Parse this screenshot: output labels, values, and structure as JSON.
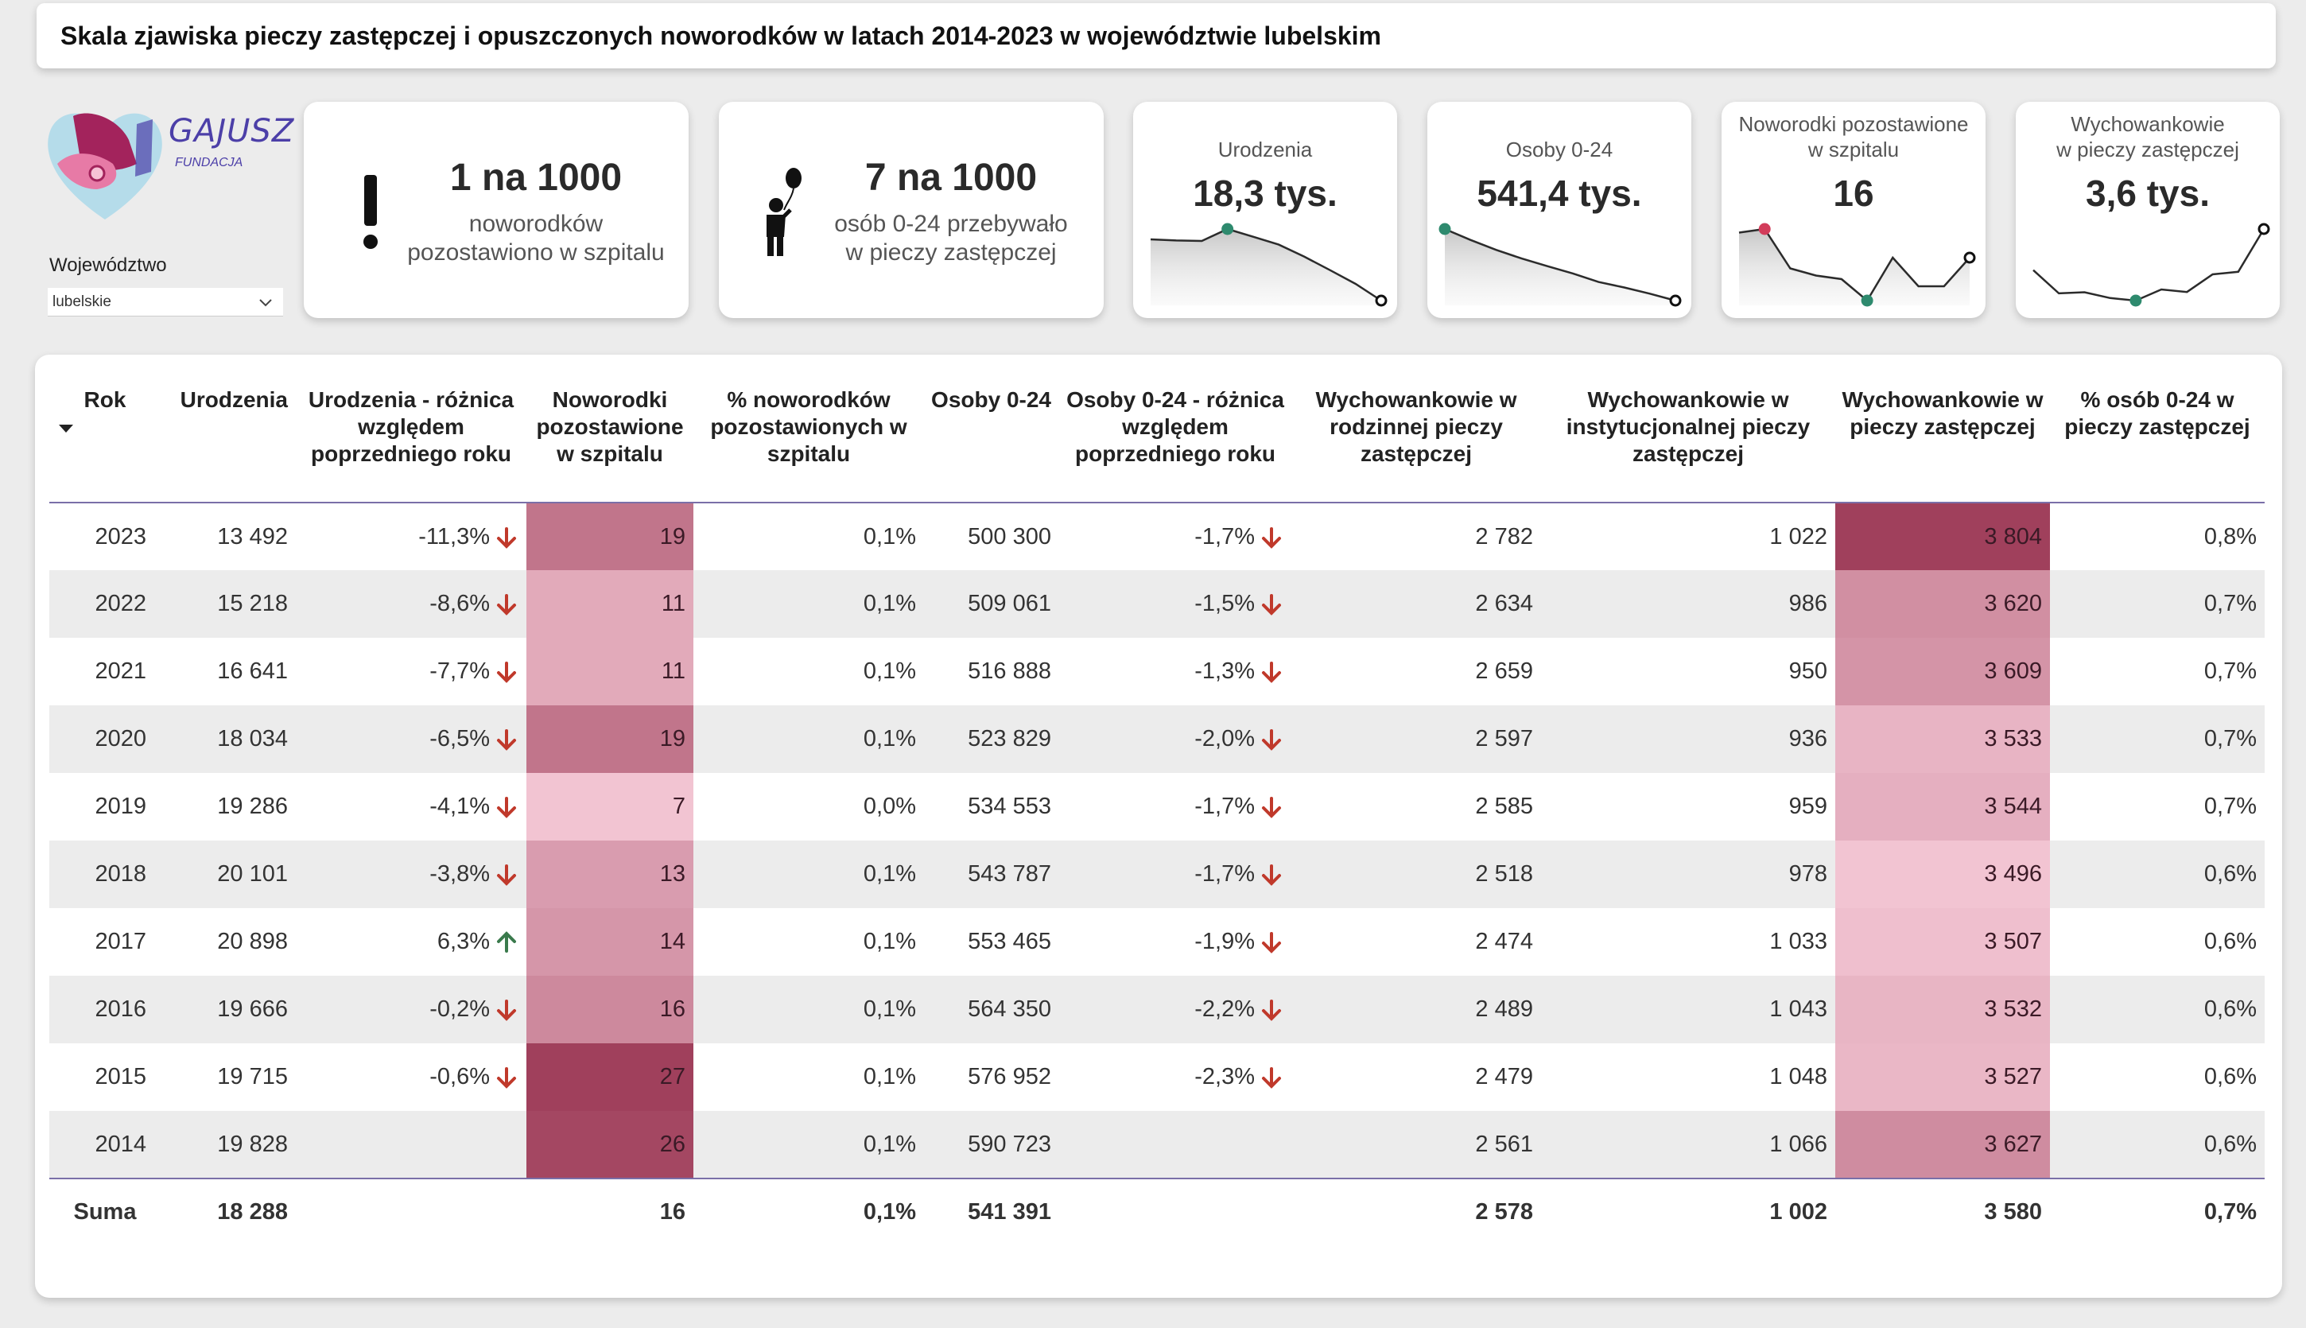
{
  "title": "Skala zjawiska pieczy zastępczej i opuszczonych noworodków w latach 2014-2023 w województwie lubelskim",
  "logo": {
    "brand": "GAJUSZ",
    "sub": "FUNDACJA"
  },
  "slicer": {
    "label": "Województwo",
    "value": "lubelskie"
  },
  "kpi_newborn": {
    "value": "1 na 1000",
    "line1": "noworodków",
    "line2": "pozostawiono w szpitalu",
    "icon": "exclamation-icon"
  },
  "kpi_foster": {
    "value": "7 na 1000",
    "line1": "osób 0-24 przebywało",
    "line2": "w pieczy zastępczej",
    "icon": "child-balloon-icon"
  },
  "spark_cards": [
    {
      "label1": "Urodzenia",
      "label2": "",
      "value": "18,3 tys.",
      "series": [
        19828,
        19715,
        19666,
        20898,
        20101,
        19286,
        18034,
        16641,
        15218,
        13492
      ],
      "highlight": "max",
      "color": "#2e8a6e",
      "area": true
    },
    {
      "label1": "Osoby 0-24",
      "label2": "",
      "value": "541,4 tys.",
      "series": [
        590723,
        576952,
        564350,
        553465,
        543787,
        534553,
        523829,
        516888,
        509061,
        500300
      ],
      "highlight": "max",
      "color": "#2e8a6e",
      "area": true
    },
    {
      "label1": "Noworodki pozostawione",
      "label2": "w szpitalu",
      "value": "16",
      "series": [
        26,
        27,
        16,
        14,
        13,
        7,
        19,
        11,
        11,
        19
      ],
      "highlight": "min",
      "color": "#2e8a6e",
      "maxColor": "#d23c5a",
      "area": true
    },
    {
      "label1": "Wychowankowie",
      "label2": "w pieczy zastępczej",
      "value": "3,6 tys.",
      "series": [
        3627,
        3527,
        3532,
        3507,
        3496,
        3544,
        3533,
        3609,
        3620,
        3804
      ],
      "highlight": "min",
      "color": "#2e8a6e",
      "area": false
    }
  ],
  "table": {
    "columns": [
      "Rok",
      "Urodzenia",
      "Urodzenia - różnica względem poprzedniego roku",
      "Noworodki pozostawione w szpitalu",
      "% noworodków pozostawionych w szpitalu",
      "Osoby 0-24",
      "Osoby 0-24 - różnica względem poprzedniego roku",
      "Wychowankowie w rodzinnej pieczy zastępczej",
      "Wychowankowie w instytucjonalnej pieczy zastępczej",
      "Wychowankowie w pieczy zastępczej",
      "% osób 0-24 w pieczy zastępczej"
    ],
    "rows": [
      {
        "rok": "2023",
        "ur": "13 492",
        "ur_diff": "-11,3%",
        "ur_dir": "down",
        "nw": "19",
        "nw_val": 19,
        "nw_pct": "0,1%",
        "os": "500 300",
        "os_diff": "-1,7%",
        "os_dir": "down",
        "rodz": "2 782",
        "inst": "1 022",
        "wych": "3 804",
        "wych_val": 3804,
        "pct": "0,8%"
      },
      {
        "rok": "2022",
        "ur": "15 218",
        "ur_diff": "-8,6%",
        "ur_dir": "down",
        "nw": "11",
        "nw_val": 11,
        "nw_pct": "0,1%",
        "os": "509 061",
        "os_diff": "-1,5%",
        "os_dir": "down",
        "rodz": "2 634",
        "inst": "986",
        "wych": "3 620",
        "wych_val": 3620,
        "pct": "0,7%"
      },
      {
        "rok": "2021",
        "ur": "16 641",
        "ur_diff": "-7,7%",
        "ur_dir": "down",
        "nw": "11",
        "nw_val": 11,
        "nw_pct": "0,1%",
        "os": "516 888",
        "os_diff": "-1,3%",
        "os_dir": "down",
        "rodz": "2 659",
        "inst": "950",
        "wych": "3 609",
        "wych_val": 3609,
        "pct": "0,7%"
      },
      {
        "rok": "2020",
        "ur": "18 034",
        "ur_diff": "-6,5%",
        "ur_dir": "down",
        "nw": "19",
        "nw_val": 19,
        "nw_pct": "0,1%",
        "os": "523 829",
        "os_diff": "-2,0%",
        "os_dir": "down",
        "rodz": "2 597",
        "inst": "936",
        "wych": "3 533",
        "wych_val": 3533,
        "pct": "0,7%"
      },
      {
        "rok": "2019",
        "ur": "19 286",
        "ur_diff": "-4,1%",
        "ur_dir": "down",
        "nw": "7",
        "nw_val": 7,
        "nw_pct": "0,0%",
        "os": "534 553",
        "os_diff": "-1,7%",
        "os_dir": "down",
        "rodz": "2 585",
        "inst": "959",
        "wych": "3 544",
        "wych_val": 3544,
        "pct": "0,7%"
      },
      {
        "rok": "2018",
        "ur": "20 101",
        "ur_diff": "-3,8%",
        "ur_dir": "down",
        "nw": "13",
        "nw_val": 13,
        "nw_pct": "0,1%",
        "os": "543 787",
        "os_diff": "-1,7%",
        "os_dir": "down",
        "rodz": "2 518",
        "inst": "978",
        "wych": "3 496",
        "wych_val": 3496,
        "pct": "0,6%"
      },
      {
        "rok": "2017",
        "ur": "20 898",
        "ur_diff": "6,3%",
        "ur_dir": "up",
        "nw": "14",
        "nw_val": 14,
        "nw_pct": "0,1%",
        "os": "553 465",
        "os_diff": "-1,9%",
        "os_dir": "down",
        "rodz": "2 474",
        "inst": "1 033",
        "wych": "3 507",
        "wych_val": 3507,
        "pct": "0,6%"
      },
      {
        "rok": "2016",
        "ur": "19 666",
        "ur_diff": "-0,2%",
        "ur_dir": "down",
        "nw": "16",
        "nw_val": 16,
        "nw_pct": "0,1%",
        "os": "564 350",
        "os_diff": "-2,2%",
        "os_dir": "down",
        "rodz": "2 489",
        "inst": "1 043",
        "wych": "3 532",
        "wych_val": 3532,
        "pct": "0,6%"
      },
      {
        "rok": "2015",
        "ur": "19 715",
        "ur_diff": "-0,6%",
        "ur_dir": "down",
        "nw": "27",
        "nw_val": 27,
        "nw_pct": "0,1%",
        "os": "576 952",
        "os_diff": "-2,3%",
        "os_dir": "down",
        "rodz": "2 479",
        "inst": "1 048",
        "wych": "3 527",
        "wych_val": 3527,
        "pct": "0,6%"
      },
      {
        "rok": "2014",
        "ur": "19 828",
        "ur_diff": "",
        "ur_dir": "",
        "nw": "26",
        "nw_val": 26,
        "nw_pct": "0,1%",
        "os": "590 723",
        "os_diff": "",
        "os_dir": "",
        "rodz": "2 561",
        "inst": "1 066",
        "wych": "3 627",
        "wych_val": 3627,
        "pct": "0,6%"
      }
    ],
    "total": {
      "rok": "Suma",
      "ur": "18 288",
      "ur_diff": "",
      "nw": "16",
      "nw_pct": "0,1%",
      "os": "541 391",
      "os_diff": "",
      "rodz": "2 578",
      "inst": "1 002",
      "wych": "3 580",
      "pct": "0,7%"
    }
  },
  "colors": {
    "arrow_down": "#c0392b",
    "arrow_up": "#3a7a4c",
    "heat_low": "#f2c4d2",
    "heat_high": "#a0405c",
    "accent_line": "#7a6fa8"
  }
}
